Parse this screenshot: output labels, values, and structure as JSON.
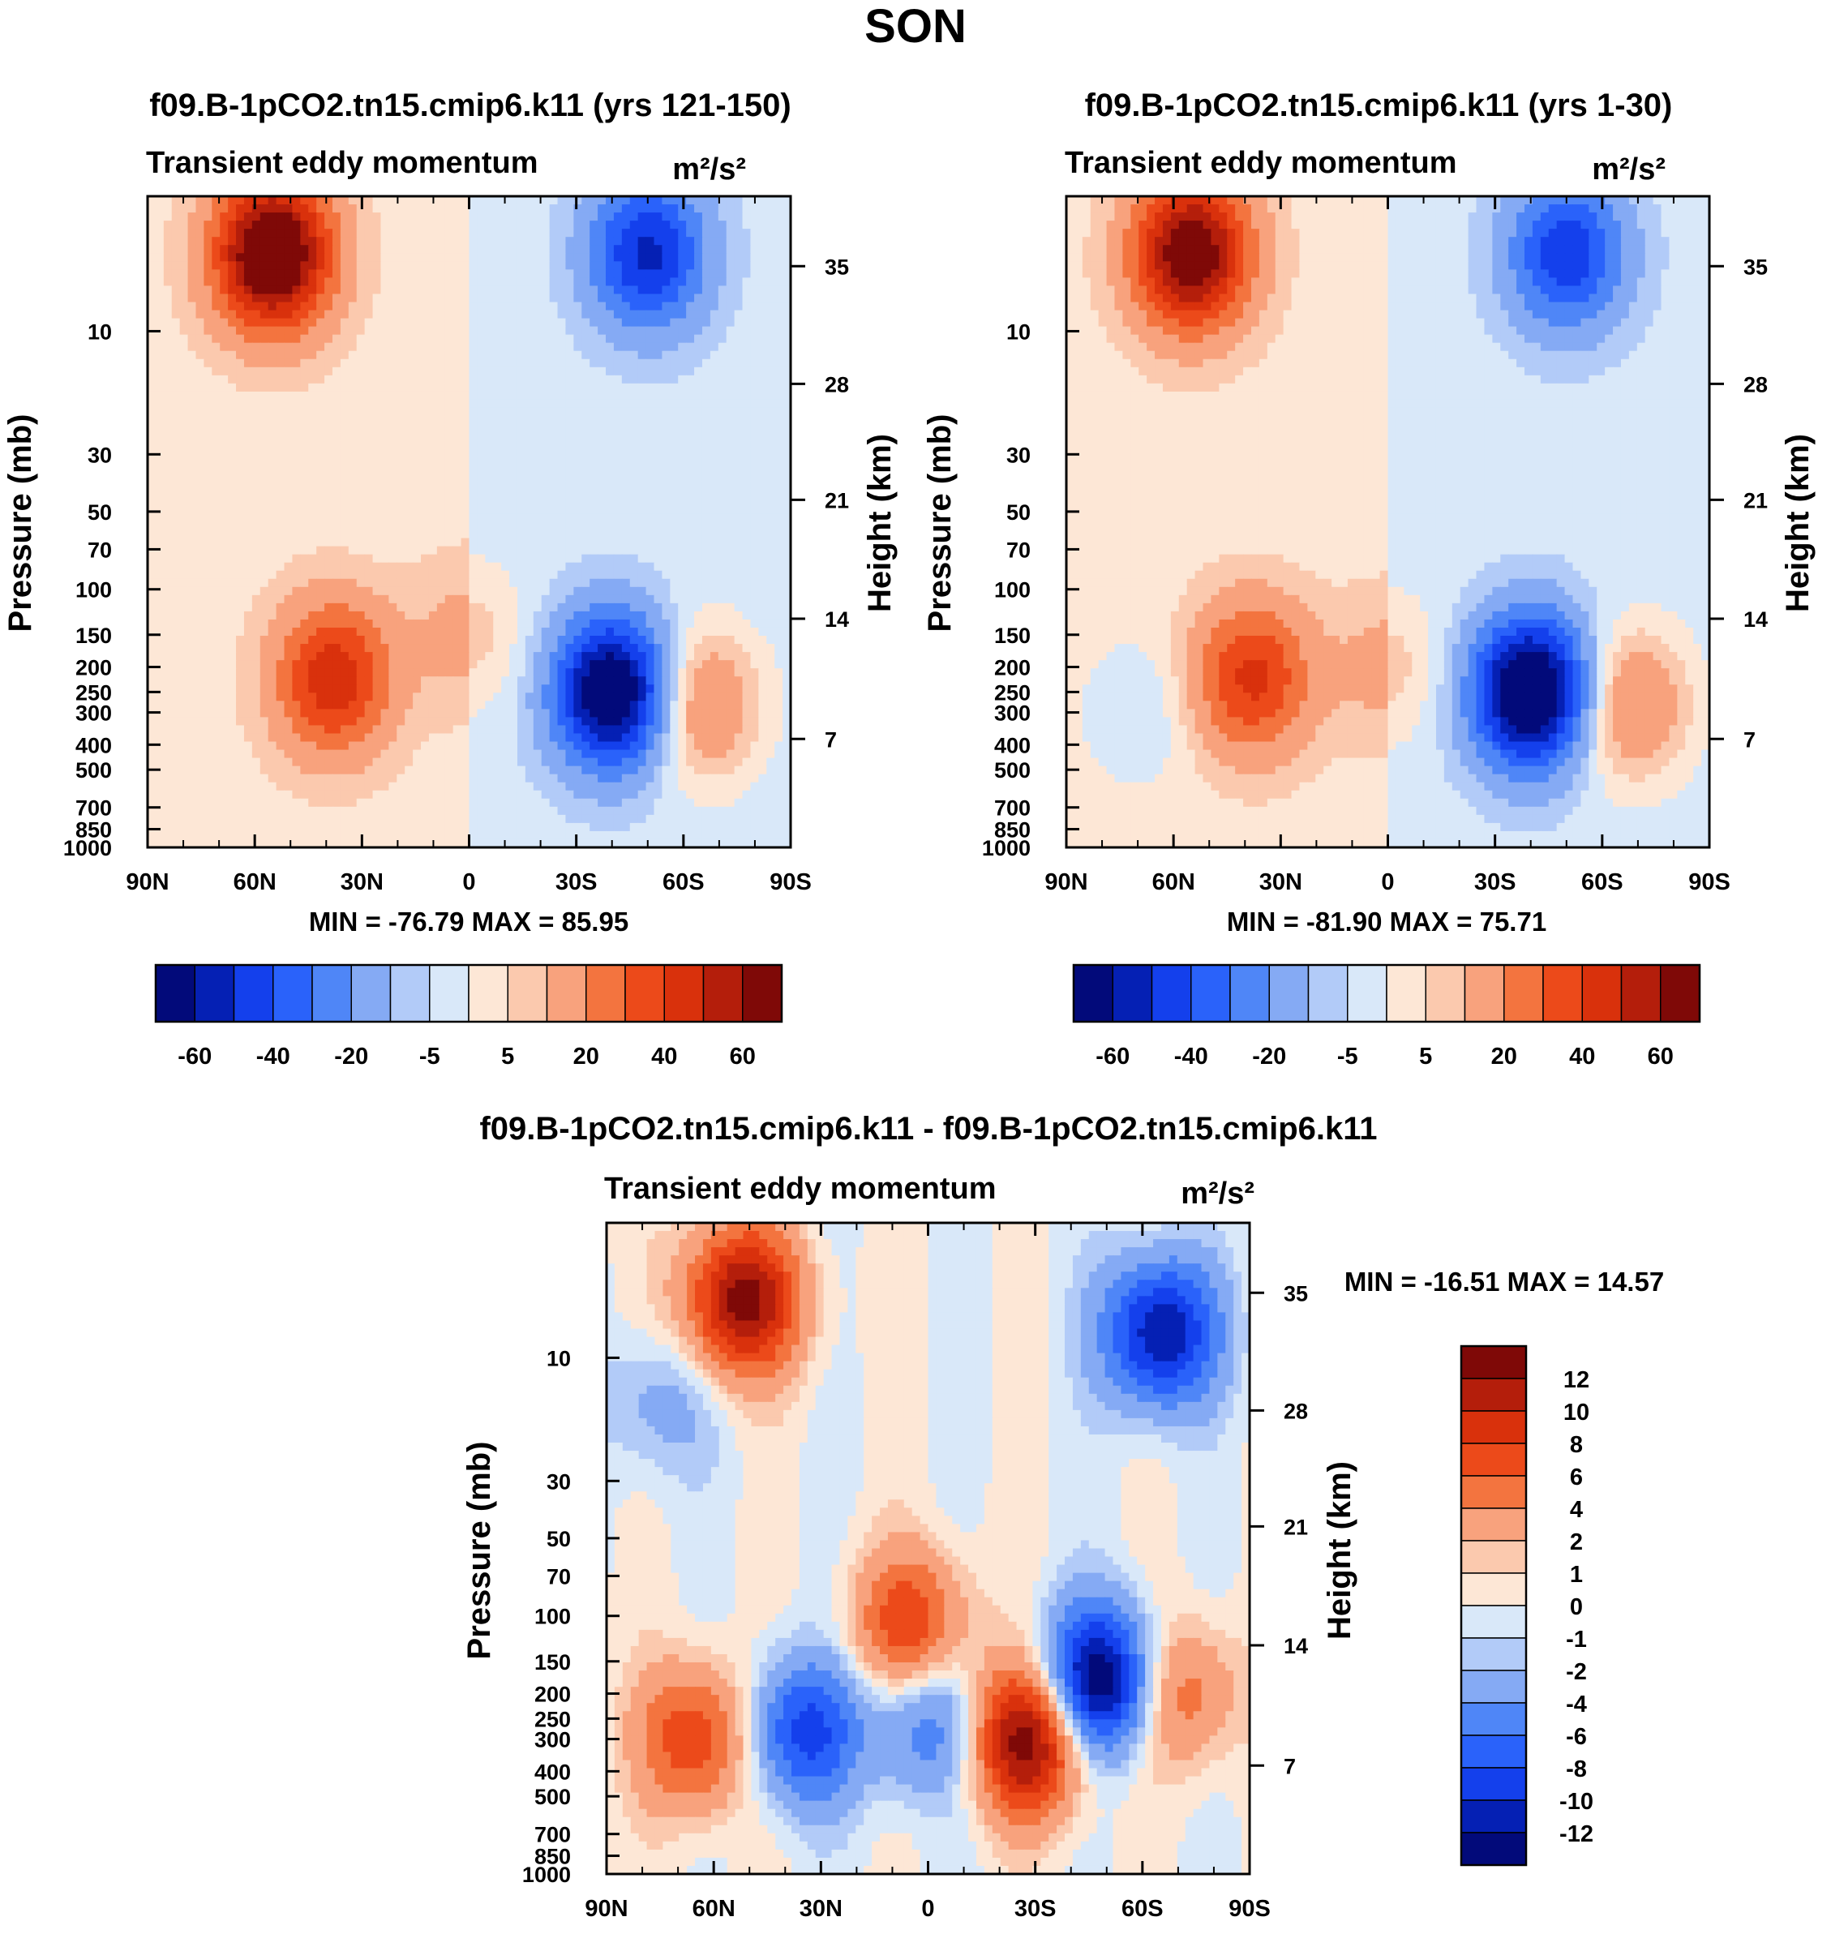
{
  "title": "SON",
  "chart_data": [
    {
      "type": "contour",
      "title": "f09.B-1pCO2.tn15.cmip6.k11 (yrs 121-150)",
      "subtitle_left": "Transient eddy momentum",
      "subtitle_right": "m²/s²",
      "xlabel": "",
      "ylabel": "Pressure (mb)",
      "ylabel_right": "Height (km)",
      "x_ticks": [
        "90N",
        "60N",
        "30N",
        "0",
        "30S",
        "60S",
        "90S"
      ],
      "y_ticks": [
        "10",
        "30",
        "50",
        "70",
        "100",
        "150",
        "200",
        "250",
        "300",
        "400",
        "500",
        "700",
        "850",
        "1000"
      ],
      "y_ticks_right": [
        "35",
        "28",
        "21",
        "14",
        "7"
      ],
      "min_max_text": "MIN = -76.79  MAX =  85.95",
      "colorbar_labels": [
        "-60",
        "-40",
        "-20",
        "-5",
        "5",
        "20",
        "40",
        "60"
      ],
      "features": [
        {
          "lat": 55,
          "p": 5,
          "value": 80
        },
        {
          "lat": 38,
          "p": 220,
          "value": 45
        },
        {
          "lat": 0,
          "p": 150,
          "value": 10
        },
        {
          "lat": -40,
          "p": 250,
          "value": -75
        },
        {
          "lat": -50,
          "p": 5,
          "value": -50
        },
        {
          "lat": -65,
          "p": 280,
          "value": 25
        }
      ]
    },
    {
      "type": "contour",
      "title": "f09.B-1pCO2.tn15.cmip6.k11 (yrs 1-30)",
      "subtitle_left": "Transient eddy momentum",
      "subtitle_right": "m²/s²",
      "xlabel": "",
      "ylabel": "Pressure (mb)",
      "ylabel_right": "Height (km)",
      "x_ticks": [
        "90N",
        "60N",
        "30N",
        "0",
        "30S",
        "60S",
        "90S"
      ],
      "y_ticks": [
        "10",
        "30",
        "50",
        "70",
        "100",
        "150",
        "200",
        "250",
        "300",
        "400",
        "500",
        "700",
        "850",
        "1000"
      ],
      "y_ticks_right": [
        "35",
        "28",
        "21",
        "14",
        "7"
      ],
      "min_max_text": "MIN = -81.90  MAX =  75.71",
      "colorbar_labels": [
        "-60",
        "-40",
        "-20",
        "-5",
        "5",
        "20",
        "40",
        "60"
      ],
      "features": [
        {
          "lat": 55,
          "p": 5,
          "value": 70
        },
        {
          "lat": 38,
          "p": 220,
          "value": 40
        },
        {
          "lat": 0,
          "p": 200,
          "value": 10
        },
        {
          "lat": -40,
          "p": 250,
          "value": -80
        },
        {
          "lat": -50,
          "p": 5,
          "value": -45
        },
        {
          "lat": -68,
          "p": 280,
          "value": 25
        },
        {
          "lat": 70,
          "p": 300,
          "value": -8
        }
      ]
    },
    {
      "type": "contour",
      "title": "f09.B-1pCO2.tn15.cmip6.k11 - f09.B-1pCO2.tn15.cmip6.k11",
      "subtitle_left": "Transient eddy momentum",
      "subtitle_right": "m²/s²",
      "xlabel": "",
      "ylabel": "Pressure (mb)",
      "ylabel_right": "Height (km)",
      "x_ticks": [
        "90N",
        "60N",
        "30N",
        "0",
        "30S",
        "60S",
        "90S"
      ],
      "y_ticks": [
        "10",
        "30",
        "50",
        "70",
        "100",
        "150",
        "200",
        "250",
        "300",
        "400",
        "500",
        "700",
        "850",
        "1000"
      ],
      "y_ticks_right": [
        "35",
        "28",
        "21",
        "14",
        "7"
      ],
      "min_max_text": "MIN = -16.51  MAX =  14.57",
      "colorbar_labels": [
        "12",
        "10",
        "8",
        "6",
        "4",
        "2",
        "1",
        "0",
        "-1",
        "-2",
        "-4",
        "-6",
        "-8",
        "-10",
        "-12"
      ],
      "features": [
        {
          "lat": 52,
          "p": 6,
          "value": 13
        },
        {
          "lat": 65,
          "p": 300,
          "value": 8
        },
        {
          "lat": 35,
          "p": 280,
          "value": -9
        },
        {
          "lat": 0,
          "p": 260,
          "value": -6
        },
        {
          "lat": 5,
          "p": 110,
          "value": 8
        },
        {
          "lat": -28,
          "p": 300,
          "value": 14
        },
        {
          "lat": -48,
          "p": 180,
          "value": -15
        },
        {
          "lat": -65,
          "p": 8,
          "value": -12
        },
        {
          "lat": -70,
          "p": 200,
          "value": 6
        },
        {
          "lat": 75,
          "p": 15,
          "value": -3
        }
      ]
    }
  ],
  "colors": {
    "diverging": [
      "#020a7a",
      "#0520b4",
      "#1440ec",
      "#2a62fa",
      "#4f86f7",
      "#85aaf4",
      "#b2cbf8",
      "#d9e8f9",
      "#fde7d6",
      "#fbc9ae",
      "#f8a27d",
      "#f3743f",
      "#ec4a1a",
      "#d9310c",
      "#b41e0b",
      "#7f0907"
    ]
  }
}
